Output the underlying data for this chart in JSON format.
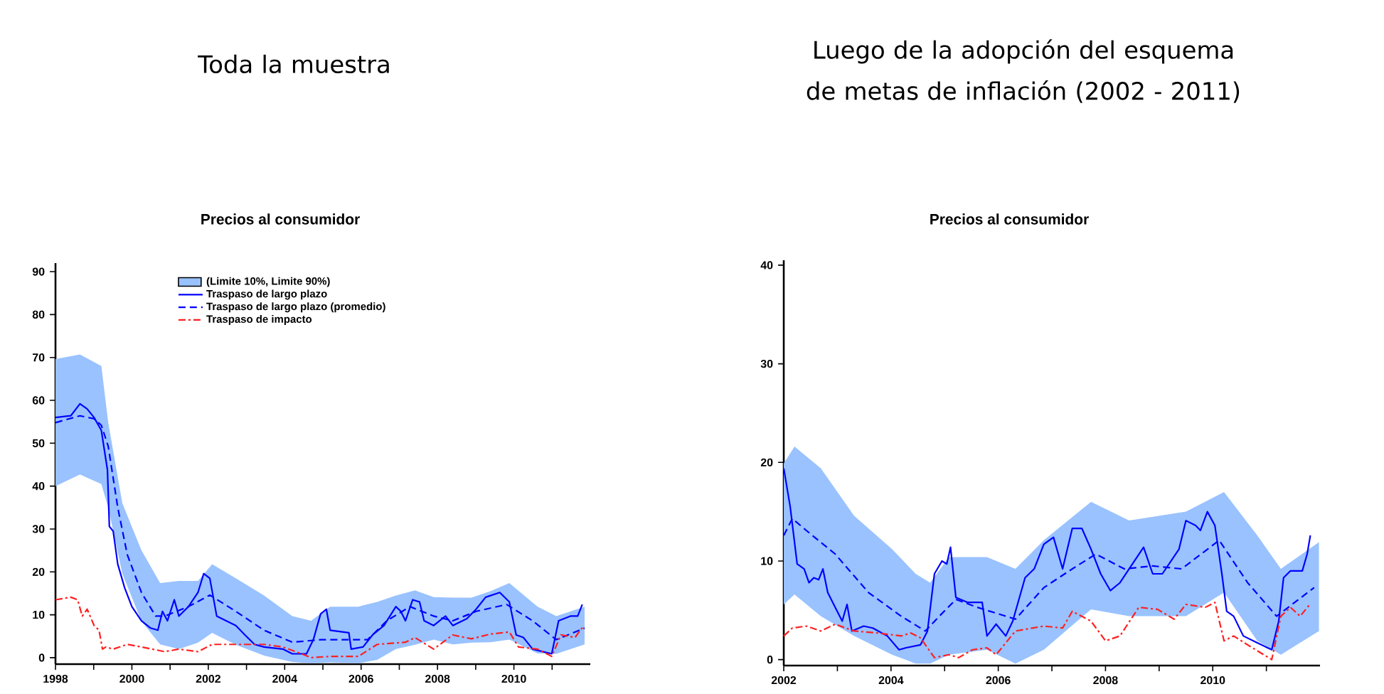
{
  "chart_data": [
    {
      "type": "line",
      "title": "Toda la muestra",
      "subtitle": "Precios al consumidor",
      "legend": "top",
      "xlim": [
        1998,
        2012
      ],
      "ylim": [
        -1.5,
        92
      ],
      "xticks": [
        1998,
        {
          "value": 1999,
          "label": null
        },
        2000,
        {
          "value": 2001,
          "label": null
        },
        2002,
        {
          "value": 2003,
          "label": null
        },
        2004,
        {
          "value": 2005,
          "label": null
        },
        2006,
        {
          "value": 2007,
          "label": null
        },
        2008,
        {
          "value": 2009,
          "label": null
        },
        2010,
        {
          "value": 2011,
          "label": null
        }
      ],
      "yticks": [
        0,
        10,
        20,
        30,
        40,
        50,
        60,
        70,
        80,
        90
      ],
      "series": [
        {
          "type": "area",
          "name": "(Limite 10%, Limite 90%)",
          "color": "#99c2ff",
          "x": [
            1998.0,
            1998.64,
            1999.2,
            1999.38,
            1999.75,
            2000.25,
            2000.74,
            2001.23,
            2001.73,
            2002.1,
            2002.72,
            2003.46,
            2004.2,
            2004.69,
            2005.19,
            2005.93,
            2006.42,
            2006.91,
            2007.41,
            2007.9,
            2008.4,
            2008.89,
            2009.38,
            2009.88,
            2010.62,
            2011.11,
            2011.85
          ],
          "values": [
            null,
            null,
            null,
            null,
            null,
            null,
            null,
            null,
            null,
            null,
            null,
            null,
            null,
            null,
            null,
            null,
            null,
            null,
            null,
            null,
            null,
            null,
            null,
            null,
            null,
            null,
            null
          ],
          "upper": [
            69.6,
            70.7,
            68,
            54.8,
            36,
            25,
            17.4,
            17.9,
            17.9,
            21.8,
            18.5,
            14.5,
            9.7,
            8.6,
            11.9,
            11.9,
            13,
            14.5,
            15.7,
            14.1,
            14,
            14,
            15.5,
            17.4,
            11.9,
            9.7,
            11.9
          ],
          "lower": [
            40,
            42.7,
            40.5,
            35,
            19.6,
            8.5,
            3.1,
            2,
            3.5,
            5.8,
            3,
            0.5,
            -1,
            -1.3,
            -1.1,
            -1.3,
            -0.5,
            2,
            3,
            4.2,
            3.1,
            3.5,
            3.6,
            4.2,
            1,
            0.9,
            3.1
          ]
        },
        {
          "name": "Traspaso de largo plazo",
          "color": "#0000ff",
          "line_style": "solid",
          "x": [
            1998.0,
            1998.4,
            1998.64,
            1998.83,
            1999.01,
            1999.2,
            1999.36,
            1999.41,
            1999.51,
            1999.63,
            1999.81,
            2000.0,
            2000.25,
            2000.49,
            2000.68,
            2000.8,
            2000.93,
            2001.11,
            2001.23,
            2001.48,
            2001.73,
            2001.88,
            2002.04,
            2002.22,
            2002.47,
            2002.72,
            2002.96,
            2003.21,
            2003.46,
            2003.95,
            2004.2,
            2004.57,
            2004.75,
            2004.94,
            2005.09,
            2005.19,
            2005.68,
            2005.74,
            2006.05,
            2006.3,
            2006.6,
            2006.91,
            2007.04,
            2007.16,
            2007.35,
            2007.53,
            2007.65,
            2007.9,
            2008.21,
            2008.4,
            2008.77,
            2009.01,
            2009.26,
            2009.63,
            2009.88,
            2010.06,
            2010.25,
            2010.49,
            2010.99,
            2011.17,
            2011.48,
            2011.67,
            2011.79
          ],
          "values": [
            56,
            56.4,
            59.2,
            58,
            56,
            53,
            43.8,
            30.6,
            29.5,
            21.8,
            16.3,
            11.9,
            8.6,
            6.9,
            6.4,
            10.8,
            8.6,
            13.5,
            9.7,
            11.9,
            15.2,
            19.6,
            18.5,
            9.7,
            8.6,
            7.5,
            5.3,
            3.1,
            2.5,
            2.0,
            0.9,
            0.9,
            4.2,
            10.2,
            11.3,
            6.4,
            5.8,
            2,
            2.5,
            5.3,
            7.5,
            11.9,
            10.8,
            8.6,
            13.5,
            13,
            8.6,
            7.5,
            9.7,
            7.5,
            9.1,
            11.3,
            14.1,
            15.2,
            13,
            5.3,
            4.7,
            2,
            0.9,
            8.6,
            9.7,
            9.7,
            12.4
          ]
        },
        {
          "name": "Traspaso de largo plazo (promedio)",
          "color": "#0000ff",
          "line_style": "dashed",
          "x": [
            1998.0,
            1998.64,
            1999.01,
            1999.2,
            1999.38,
            1999.63,
            1999.88,
            2000.25,
            2000.62,
            2000.86,
            2001.48,
            2002.04,
            2002.72,
            2003.46,
            2004.2,
            2004.94,
            2005.68,
            2006.17,
            2006.67,
            2007.28,
            2007.9,
            2008.4,
            2009.01,
            2009.81,
            2010.49,
            2011.11,
            2011.85
          ],
          "values": [
            54.8,
            56.4,
            55.7,
            54.2,
            49.3,
            35,
            24,
            15.2,
            9.7,
            9.7,
            11.9,
            14.6,
            10.8,
            6.4,
            3.6,
            4.2,
            4.2,
            4.2,
            8.6,
            11.9,
            9.7,
            8.6,
            10.8,
            12.4,
            8.6,
            4.2,
            6.9
          ]
        },
        {
          "name": "Traspaso de impacto",
          "color": "#ff2020",
          "line_style": "dashdot",
          "x": [
            1998.0,
            1998.4,
            1998.58,
            1998.7,
            1998.83,
            1999.01,
            1999.14,
            1999.23,
            1999.32,
            1999.51,
            1999.88,
            2000.25,
            2000.86,
            2001.23,
            2001.73,
            2002.1,
            2002.72,
            2003.46,
            2003.95,
            2004.44,
            2004.69,
            2005.19,
            2005.93,
            2006.42,
            2007.16,
            2007.41,
            2007.9,
            2008.4,
            2008.89,
            2009.38,
            2009.88,
            2010.12,
            2010.62,
            2010.99,
            2011.23,
            2011.6,
            2011.83
          ],
          "values": [
            13.5,
            14.1,
            13.5,
            9.7,
            11.3,
            7.5,
            6.4,
            2,
            2.5,
            2,
            3.1,
            2.5,
            1.4,
            2,
            1.4,
            3.1,
            3.1,
            3.1,
            2.5,
            0.9,
            0,
            0.3,
            0.3,
            3.1,
            3.6,
            4.7,
            2,
            5.3,
            4.4,
            5.5,
            6,
            2.5,
            2,
            0.3,
            5.3,
            4.7,
            7.5
          ]
        }
      ]
    },
    {
      "type": "line",
      "title": "Luego de la adopción del esquema de metas de inflación (2002 - 2011)",
      "subtitle": "Precios al consumidor",
      "xlim": [
        2002,
        2012
      ],
      "ylim": [
        -0.6,
        40.5
      ],
      "xticks": [
        2002,
        {
          "value": 2003,
          "label": null
        },
        2004,
        {
          "value": 2005,
          "label": null
        },
        2006,
        {
          "value": 2007,
          "label": null
        },
        2008,
        {
          "value": 2009,
          "label": null
        },
        2010,
        {
          "value": 2011,
          "label": null
        }
      ],
      "yticks": [
        0,
        10,
        20,
        30,
        40
      ],
      "series": [
        {
          "type": "area",
          "color": "#99c2ff",
          "x": [
            2002.0,
            2002.2,
            2002.69,
            2003.31,
            2004.02,
            2004.46,
            2004.73,
            2005.08,
            2005.79,
            2006.32,
            2006.85,
            2007.73,
            2008.44,
            2009.5,
            2010.21,
            2010.83,
            2011.27,
            2011.98
          ],
          "values": [
            null,
            null,
            null,
            null,
            null,
            null,
            null,
            null,
            null,
            null,
            null,
            null,
            null,
            null,
            null,
            null,
            null,
            null
          ],
          "upper": [
            19.9,
            21.6,
            19.4,
            14.6,
            11.2,
            8.7,
            7.8,
            10.4,
            10.4,
            9.2,
            12.1,
            16,
            14.1,
            15,
            17,
            12.6,
            9.2,
            11.9
          ],
          "lower": [
            5.6,
            6.6,
            4.4,
            2.4,
            0.5,
            -0.4,
            -0.4,
            0.5,
            1,
            -0.4,
            1,
            5.1,
            4.4,
            4.4,
            6.8,
            1.9,
            0.5,
            2.9
          ]
        },
        {
          "color": "#0000ff",
          "line_style": "solid",
          "x": [
            2002.0,
            2002.12,
            2002.25,
            2002.38,
            2002.47,
            2002.56,
            2002.65,
            2002.73,
            2002.82,
            2002.96,
            2003.09,
            2003.18,
            2003.27,
            2003.49,
            2003.66,
            2003.93,
            2004.15,
            2004.28,
            2004.55,
            2004.68,
            2004.81,
            2004.95,
            2005.04,
            2005.11,
            2005.21,
            2005.43,
            2005.7,
            2005.79,
            2005.96,
            2006.14,
            2006.27,
            2006.5,
            2006.67,
            2006.85,
            2007.03,
            2007.2,
            2007.38,
            2007.56,
            2007.73,
            2007.91,
            2008.09,
            2008.27,
            2008.44,
            2008.71,
            2008.88,
            2009.06,
            2009.37,
            2009.5,
            2009.68,
            2009.77,
            2009.9,
            2010.04,
            2010.17,
            2010.26,
            2010.39,
            2010.57,
            2010.83,
            2011.1,
            2011.23,
            2011.32,
            2011.45,
            2011.67,
            2011.76,
            2011.82
          ],
          "values": [
            19.4,
            15.5,
            9.7,
            9.2,
            7.8,
            8.3,
            8.1,
            9.2,
            6.8,
            5.3,
            3.9,
            5.6,
            2.9,
            3.4,
            3.2,
            2.4,
            1,
            1.2,
            1.5,
            2.9,
            8.7,
            10,
            9.7,
            11.4,
            6.3,
            5.8,
            5.8,
            2.4,
            3.6,
            2.4,
            3.9,
            8.3,
            9.2,
            11.7,
            12.4,
            9.2,
            13.3,
            13.3,
            11.2,
            8.7,
            7,
            7.8,
            9.2,
            11.4,
            8.7,
            8.7,
            11.2,
            14.1,
            13.6,
            13.1,
            15,
            13.6,
            8.7,
            4.9,
            4.4,
            2.4,
            1.7,
            1,
            3.9,
            8.3,
            9,
            9,
            10.7,
            12.6
          ]
        },
        {
          "color": "#0000ff",
          "line_style": "dashed",
          "x": [
            2002.0,
            2002.16,
            2002.42,
            2002.96,
            2003.58,
            2004.19,
            2004.64,
            2004.9,
            2005.21,
            2005.61,
            2006.32,
            2006.85,
            2007.38,
            2007.82,
            2008.35,
            2008.88,
            2009.42,
            2010.12,
            2010.65,
            2011.19,
            2011.89
          ],
          "values": [
            12.6,
            14.3,
            13.1,
            10.7,
            6.8,
            4.4,
            2.9,
            4.4,
            6.1,
            5.3,
            4.1,
            7.3,
            9.2,
            10.7,
            9.2,
            9.5,
            9.2,
            12.1,
            7.8,
            4.4,
            7.3
          ]
        },
        {
          "color": "#ff2020",
          "line_style": "dashdot",
          "x": [
            2002.0,
            2002.16,
            2002.42,
            2002.69,
            2002.96,
            2003.31,
            2003.75,
            2004.19,
            2004.37,
            2004.55,
            2004.81,
            2005.08,
            2005.26,
            2005.52,
            2005.79,
            2005.96,
            2006.32,
            2006.85,
            2007.2,
            2007.38,
            2007.73,
            2008.0,
            2008.27,
            2008.62,
            2008.97,
            2009.28,
            2009.5,
            2009.86,
            2010.04,
            2010.21,
            2010.39,
            2010.65,
            2011.1,
            2011.27,
            2011.45,
            2011.63,
            2011.81
          ],
          "values": [
            2.4,
            3.2,
            3.4,
            2.9,
            3.6,
            2.9,
            2.7,
            2.4,
            2.7,
            2.2,
            0.2,
            0.5,
            0.2,
            1,
            1.2,
            0.5,
            2.9,
            3.4,
            3.2,
            4.9,
            3.9,
            1.9,
            2.4,
            5.3,
            5.1,
            4.1,
            5.6,
            5.3,
            5.8,
            1.9,
            2.4,
            1.5,
            0,
            4.4,
            5.3,
            4.4,
            5.6
          ]
        }
      ]
    }
  ]
}
